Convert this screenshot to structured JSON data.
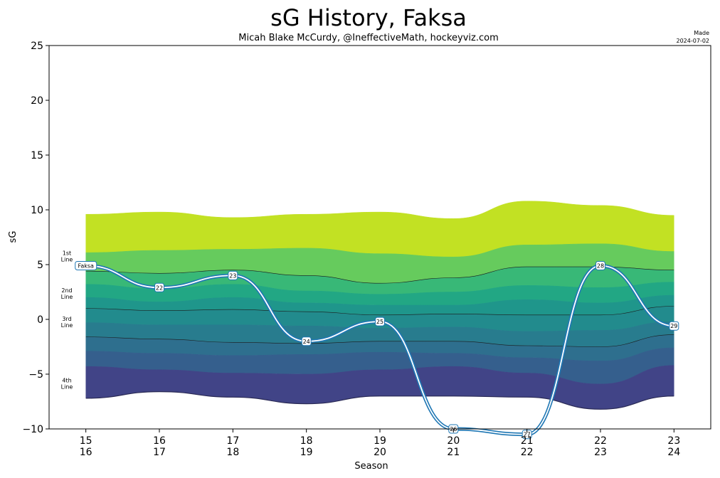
{
  "chart_data": {
    "type": "area",
    "title": "sG History, Faksa",
    "subtitle": "Micah Blake McCurdy, @IneffectiveMath, hockeyviz.com",
    "made_label": "Made",
    "made_date": "2024-07-02",
    "xlabel": "Season",
    "ylabel": "sG",
    "ylim": [
      -10,
      25
    ],
    "yticks": [
      -10,
      -5,
      0,
      5,
      10,
      15,
      20,
      25
    ],
    "xlim": [
      -0.5,
      8.5
    ],
    "seasons": [
      {
        "top": "15",
        "bottom": "16"
      },
      {
        "top": "16",
        "bottom": "17"
      },
      {
        "top": "17",
        "bottom": "18"
      },
      {
        "top": "18",
        "bottom": "19"
      },
      {
        "top": "19",
        "bottom": "20"
      },
      {
        "top": "20",
        "bottom": "21"
      },
      {
        "top": "21",
        "bottom": "22"
      },
      {
        "top": "22",
        "bottom": "23"
      },
      {
        "top": "23",
        "bottom": "24"
      }
    ],
    "bands": [
      {
        "name": "band-1",
        "color": "#c2e123",
        "values": [
          9.6,
          9.8,
          9.3,
          9.6,
          9.8,
          9.2,
          10.8,
          10.4,
          9.5
        ]
      },
      {
        "name": "band-2",
        "color": "#66cb5d",
        "values": [
          6.1,
          6.3,
          6.4,
          6.5,
          6.0,
          5.7,
          6.8,
          6.9,
          6.2
        ]
      },
      {
        "name": "band-3",
        "color": "#38b877",
        "values": [
          4.4,
          4.2,
          4.5,
          4.0,
          3.3,
          3.8,
          4.8,
          4.8,
          4.5
        ]
      },
      {
        "name": "band-4",
        "color": "#22a784",
        "values": [
          3.2,
          2.8,
          3.2,
          2.6,
          2.3,
          2.5,
          3.1,
          2.9,
          3.4
        ]
      },
      {
        "name": "band-5",
        "color": "#1f968b",
        "values": [
          2.0,
          1.6,
          2.0,
          1.5,
          1.3,
          1.3,
          1.8,
          1.5,
          2.2
        ]
      },
      {
        "name": "band-6",
        "color": "#228b8d",
        "values": [
          1.0,
          0.8,
          0.9,
          0.7,
          0.4,
          0.5,
          0.4,
          0.4,
          1.2
        ]
      },
      {
        "name": "band-7",
        "color": "#287c8e",
        "values": [
          -0.3,
          -0.5,
          -0.5,
          -0.6,
          -0.8,
          -0.7,
          -1.1,
          -1.0,
          -0.2
        ]
      },
      {
        "name": "band-8",
        "color": "#2e6f8e",
        "values": [
          -1.6,
          -1.8,
          -2.1,
          -2.2,
          -2.0,
          -2.0,
          -2.4,
          -2.5,
          -1.4
        ]
      },
      {
        "name": "band-9",
        "color": "#355f8d",
        "values": [
          -2.9,
          -3.1,
          -3.3,
          -3.2,
          -3.0,
          -3.1,
          -3.5,
          -3.8,
          -2.6
        ]
      },
      {
        "name": "band-10",
        "color": "#414487",
        "values": [
          -4.3,
          -4.6,
          -4.9,
          -5.0,
          -4.6,
          -4.3,
          -4.9,
          -5.9,
          -4.2
        ]
      }
    ],
    "band_floor": [
      -7.2,
      -6.6,
      -7.1,
      -7.7,
      -7.0,
      -7.0,
      -7.1,
      -8.2,
      -7.0
    ],
    "line_boundaries": [
      {
        "name": "boundary-1st-2nd",
        "values": [
          4.4,
          4.2,
          4.5,
          4.0,
          3.3,
          3.8,
          4.8,
          4.8,
          4.5
        ]
      },
      {
        "name": "boundary-2nd-3rd",
        "values": [
          1.0,
          0.8,
          0.9,
          0.7,
          0.4,
          0.5,
          0.4,
          0.4,
          1.2
        ]
      },
      {
        "name": "boundary-3rd-4th",
        "values": [
          -1.6,
          -1.8,
          -2.1,
          -2.2,
          -2.0,
          -2.0,
          -2.4,
          -2.5,
          -1.4
        ]
      }
    ],
    "tiers": [
      {
        "line1": "1st",
        "line2": "Line",
        "y": 5.8
      },
      {
        "line1": "2nd",
        "line2": "Line",
        "y": 2.4
      },
      {
        "line1": "3rd",
        "line2": "Line",
        "y": -0.2
      },
      {
        "line1": "4th",
        "line2": "Line",
        "y": -5.8
      }
    ],
    "series": {
      "name": "Faksa",
      "color": "#1f77b4",
      "values": [
        4.9,
        2.9,
        4.0,
        -2.0,
        -0.2,
        -10.0,
        -10.5,
        4.9,
        -0.6
      ],
      "labels": [
        "Faksa",
        "22",
        "23",
        "24",
        "25",
        "26",
        "27",
        "28",
        "29"
      ]
    }
  }
}
